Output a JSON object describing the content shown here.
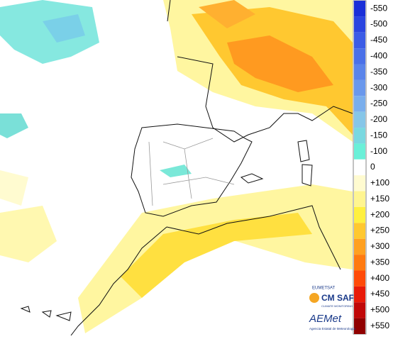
{
  "legend": {
    "items": [
      {
        "label": "-550",
        "color": "#1a2fd8"
      },
      {
        "label": "-500",
        "color": "#2a45e0"
      },
      {
        "label": "-450",
        "color": "#3b5ce6"
      },
      {
        "label": "-400",
        "color": "#4a70e8"
      },
      {
        "label": "-350",
        "color": "#5a84ea"
      },
      {
        "label": "-300",
        "color": "#6a98ec"
      },
      {
        "label": "-250",
        "color": "#7aaeec"
      },
      {
        "label": "-200",
        "color": "#86c6e8"
      },
      {
        "label": "-150",
        "color": "#7ad8e0"
      },
      {
        "label": "-100",
        "color": "#6af0d8"
      },
      {
        "label": "0",
        "color": "#ffffff"
      },
      {
        "label": "+100",
        "color": "#fffbd0"
      },
      {
        "label": "+150",
        "color": "#fff590"
      },
      {
        "label": "+200",
        "color": "#fff040"
      },
      {
        "label": "+250",
        "color": "#ffc830"
      },
      {
        "label": "+300",
        "color": "#ffa020"
      },
      {
        "label": "+350",
        "color": "#ff7a10"
      },
      {
        "label": "+400",
        "color": "#ff4a08"
      },
      {
        "label": "+450",
        "color": "#e81a08"
      },
      {
        "label": "+500",
        "color": "#c00808"
      },
      {
        "label": "+550",
        "color": "#900000"
      }
    ]
  },
  "logos": {
    "eumetsat": "EUMETSAT",
    "cmsaf": "CM SAF",
    "cmsaf_sub": "CLIMATE MONITORING",
    "aemet": "AEMet",
    "aemet_sub": "Agencia Estatal de Meteorología"
  }
}
